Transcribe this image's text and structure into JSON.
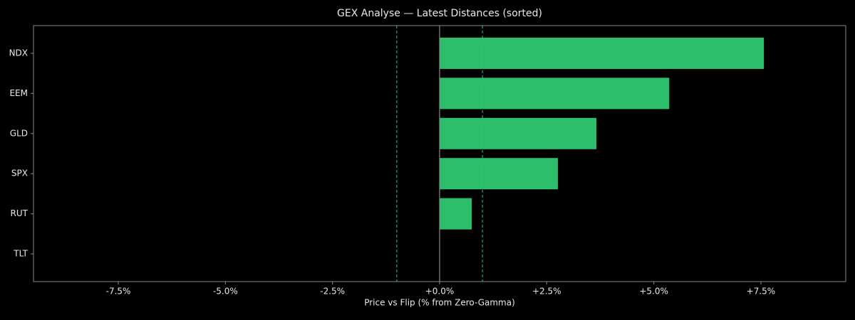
{
  "chart_data": {
    "type": "barh",
    "title": "GEX Analyse — Latest Distances (sorted)",
    "x_label": "Price vs Flip (% from Zero-Gamma)",
    "categories": [
      "NDX",
      "EEM",
      "GLD",
      "SPX",
      "RUT",
      "TLT"
    ],
    "values": [
      7.57,
      5.36,
      3.66,
      2.76,
      0.75,
      0
    ],
    "color": "#2dbe6c",
    "xlim": [
      -9.48,
      9.48
    ],
    "xticks": [
      {
        "value": -7.5,
        "label": "-7.5%"
      },
      {
        "value": -5,
        "label": "-5.0%"
      },
      {
        "value": -2.5,
        "label": "-2.5%"
      },
      {
        "value": 0,
        "label": "+0.0%"
      },
      {
        "value": 2.5,
        "label": "+2.5%"
      },
      {
        "value": 5,
        "label": "+5.0%"
      },
      {
        "value": 7.5,
        "label": "+7.5%"
      }
    ],
    "reference_lines": [
      -1,
      1
    ],
    "reference_color": "#2ecc71",
    "zero_line_color": "#888888"
  }
}
